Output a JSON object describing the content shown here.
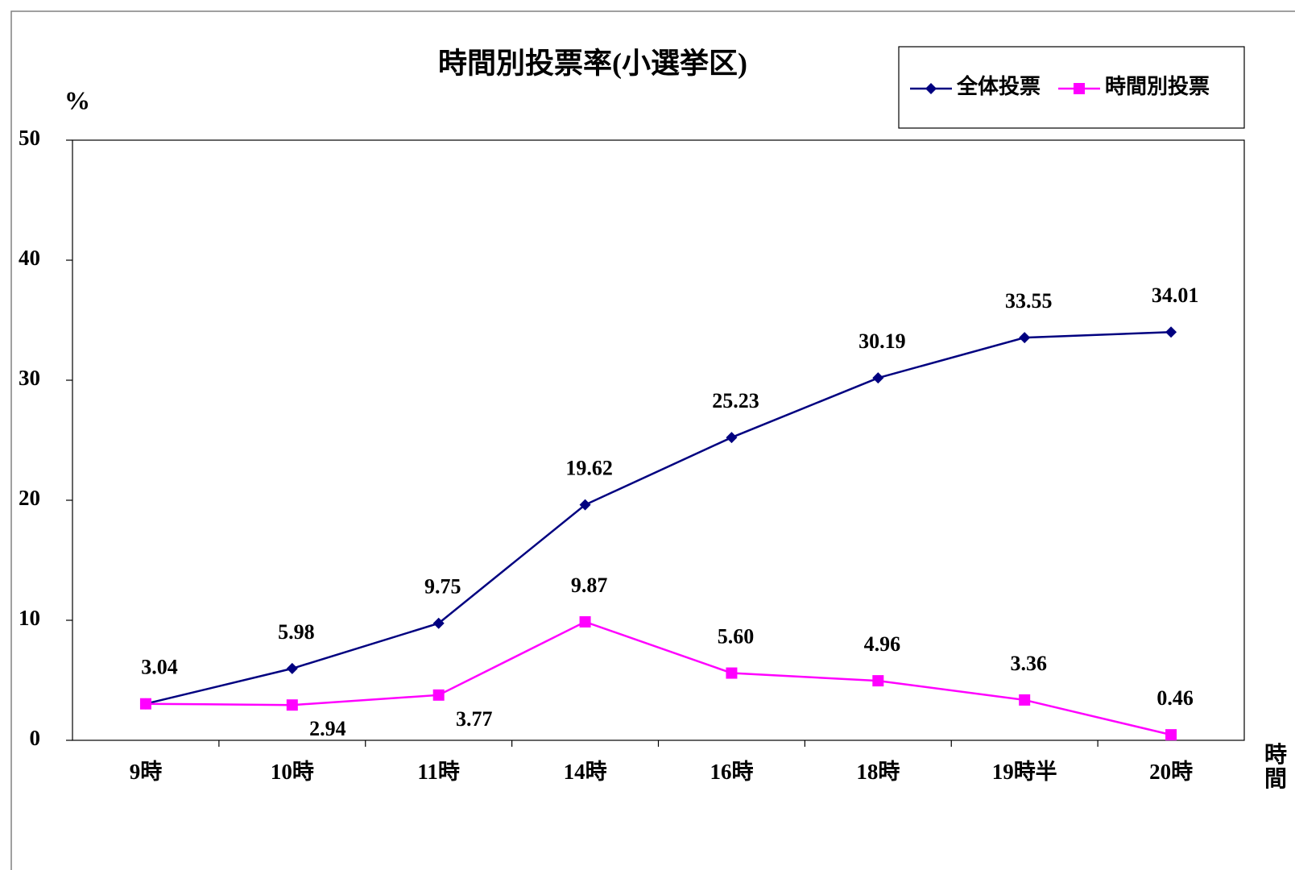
{
  "chart_data": {
    "type": "line",
    "title": "時間別投票率(小選挙区)",
    "y_label": "%",
    "x_label": "時間",
    "categories": [
      "9時",
      "10時",
      "11時",
      "14時",
      "16時",
      "18時",
      "19時半",
      "20時"
    ],
    "series": [
      {
        "name": "全体投票",
        "color": "#000080",
        "marker": "diamond",
        "values": [
          3.04,
          5.98,
          9.75,
          19.62,
          25.23,
          30.19,
          33.55,
          34.01
        ],
        "value_labels": [
          "3.04",
          "5.98",
          "9.75",
          "19.62",
          "25.23",
          "30.19",
          "33.55",
          "34.01"
        ]
      },
      {
        "name": "時間別投票",
        "color": "#ff00ff",
        "marker": "square",
        "values": [
          3.04,
          2.94,
          3.77,
          9.87,
          5.6,
          4.96,
          3.36,
          0.46
        ],
        "value_labels": [
          null,
          "2.94",
          "3.77",
          "9.87",
          "5.60",
          "4.96",
          "3.36",
          "0.46"
        ]
      }
    ],
    "ylim": [
      0,
      50
    ],
    "yticks": [
      0,
      10,
      20,
      30,
      40,
      50
    ],
    "grid": false,
    "legend": "top-right"
  }
}
